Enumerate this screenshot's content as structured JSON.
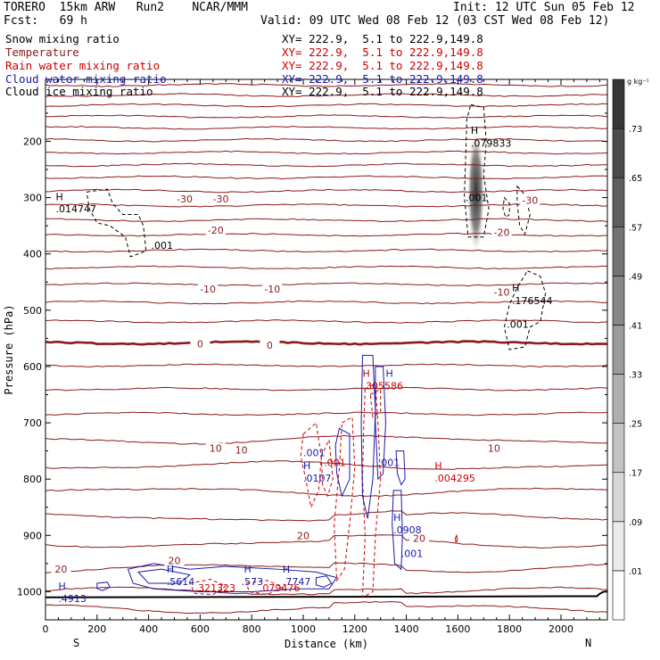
{
  "header": {
    "left_line1": "TORERO  15km ARW   Run2    NCAR/MMM",
    "left_line2": "Fcst:   69 h",
    "init": "Init: 12 UTC Sun 05 Feb 12",
    "valid": "Valid: 09 UTC Wed 08 Feb 12 (03 CST Wed 08 Feb 12)"
  },
  "fields": [
    {
      "name": "Snow mixing ratio",
      "color": "#000000",
      "xy": "XY= 222.9,  5.1 to 222.9,149.8",
      "xy_color": "#000000"
    },
    {
      "name": "Temperature",
      "color": "#8b1a1a",
      "xy": "XY= 222.9,  5.1 to 222.9,149.8",
      "xy_color": "#cc0000"
    },
    {
      "name": "Rain water mixing ratio",
      "color": "#cc0000",
      "xy": "XY= 222.9,  5.1 to 222.9,149.8",
      "xy_color": "#cc0000"
    },
    {
      "name": "Cloud water mixing ratio",
      "color": "#1a1aa8",
      "xy": "XY= 222.9,  5.1 to 222.9,149.8",
      "xy_color": "#1a1aa8"
    },
    {
      "name": "Cloud ice mixing ratio",
      "color": "#000000",
      "xy": "XY= 222.9,  5.1 to 222.9,149.8",
      "xy_color": "#000000"
    }
  ],
  "chart_data": {
    "type": "cross-section",
    "xlabel": "Distance (km)",
    "ylabel": "Pressure (hPa)",
    "xlim": [
      0,
      2180
    ],
    "ylim": [
      1050,
      90
    ],
    "x_ticks": [
      0,
      200,
      400,
      600,
      800,
      1000,
      1200,
      1400,
      1600,
      1800,
      2000
    ],
    "y_ticks": [
      200,
      300,
      400,
      500,
      600,
      700,
      800,
      900,
      1000
    ],
    "x_end_labels": [
      "S",
      "N"
    ],
    "colorbar": {
      "unit": "g kg⁻¹",
      "ticks": [
        ".01",
        ".09",
        ".17",
        ".25",
        ".33",
        ".41",
        ".49",
        ".57",
        ".65",
        ".73"
      ]
    },
    "temperature_contour_labels": [
      {
        "text": "-30",
        "x": 540,
        "p": 302
      },
      {
        "text": "-30",
        "x": 680,
        "p": 302
      },
      {
        "text": "-30",
        "x": 1880,
        "p": 305
      },
      {
        "text": "-20",
        "x": 660,
        "p": 358
      },
      {
        "text": "-20",
        "x": 1770,
        "p": 362
      },
      {
        "text": "-10",
        "x": 630,
        "p": 462
      },
      {
        "text": "-10",
        "x": 880,
        "p": 462
      },
      {
        "text": "-10",
        "x": 1770,
        "p": 468
      },
      {
        "text": "0",
        "x": 600,
        "p": 560
      },
      {
        "text": "0",
        "x": 870,
        "p": 562
      },
      {
        "text": "10",
        "x": 660,
        "p": 745
      },
      {
        "text": "10",
        "x": 760,
        "p": 748
      },
      {
        "text": "10",
        "x": 1740,
        "p": 745
      },
      {
        "text": "20",
        "x": 60,
        "p": 960
      },
      {
        "text": "20",
        "x": 500,
        "p": 945
      },
      {
        "text": "20",
        "x": 1000,
        "p": 900
      },
      {
        "text": "20",
        "x": 1450,
        "p": 905
      }
    ],
    "maxima_labels": [
      {
        "text": "H",
        "x": 40,
        "p": 298,
        "color": "#000000"
      },
      {
        "text": ".014747",
        "x": 40,
        "p": 320,
        "color": "#000000"
      },
      {
        "text": "H",
        "x": 1650,
        "p": 180,
        "color": "#000000"
      },
      {
        "text": ".079833",
        "x": 1650,
        "p": 203,
        "color": "#000000"
      },
      {
        "text": "H",
        "x": 1810,
        "p": 460,
        "color": "#000000"
      },
      {
        "text": ".176544",
        "x": 1810,
        "p": 483,
        "color": "#000000"
      },
      {
        "text": "H",
        "x": 1230,
        "p": 612,
        "color": "#cc0000"
      },
      {
        "text": ".305586",
        "x": 1230,
        "p": 634,
        "color": "#cc0000"
      },
      {
        "text": "H",
        "x": 1320,
        "p": 612,
        "color": "#1a1aa8"
      },
      {
        "text": "H",
        "x": 1510,
        "p": 776,
        "color": "#cc0000"
      },
      {
        "text": ".004295",
        "x": 1510,
        "p": 798,
        "color": "#cc0000"
      },
      {
        "text": "H",
        "x": 1000,
        "p": 776,
        "color": "#1a1aa8"
      },
      {
        "text": ".0107",
        "x": 1000,
        "p": 798,
        "color": "#1a1aa8"
      },
      {
        "text": "H",
        "x": 1350,
        "p": 868,
        "color": "#1a1aa8"
      },
      {
        "text": ".0908",
        "x": 1350,
        "p": 890,
        "color": "#1a1aa8"
      },
      {
        "text": "H",
        "x": 50,
        "p": 990,
        "color": "#1a1aa8"
      },
      {
        "text": ".4913",
        "x": 50,
        "p": 1012,
        "color": "#1a1aa8"
      },
      {
        "text": "H",
        "x": 470,
        "p": 960,
        "color": "#1a1aa8"
      },
      {
        "text": ".5614",
        "x": 470,
        "p": 982,
        "color": "#1a1aa8"
      },
      {
        "text": ".321323",
        "x": 580,
        "p": 993,
        "color": "#cc0000"
      },
      {
        "text": "H",
        "x": 770,
        "p": 960,
        "color": "#1a1aa8"
      },
      {
        "text": ".573",
        "x": 760,
        "p": 982,
        "color": "#1a1aa8"
      },
      {
        "text": ".079476",
        "x": 830,
        "p": 993,
        "color": "#cc0000"
      },
      {
        "text": "H",
        "x": 920,
        "p": 960,
        "color": "#1a1aa8"
      },
      {
        "text": ".7747",
        "x": 920,
        "p": 982,
        "color": "#1a1aa8"
      }
    ],
    "contour_value_labels": [
      {
        "text": ".001",
        "x": 410,
        "p": 385,
        "color": "#000000"
      },
      {
        "text": ".001",
        "x": 1630,
        "p": 300,
        "color": "#000000"
      },
      {
        "text": ".001",
        "x": 1790,
        "p": 525,
        "color": "#000000"
      },
      {
        "text": ".001",
        "x": 1000,
        "p": 753,
        "color": "#1a1aa8"
      },
      {
        "text": ".001",
        "x": 1080,
        "p": 770,
        "color": "#cc0000"
      },
      {
        "text": ".001",
        "x": 1290,
        "p": 770,
        "color": "#1a1aa8"
      },
      {
        "text": ".001",
        "x": 1380,
        "p": 932,
        "color": "#1a1aa8"
      }
    ]
  }
}
